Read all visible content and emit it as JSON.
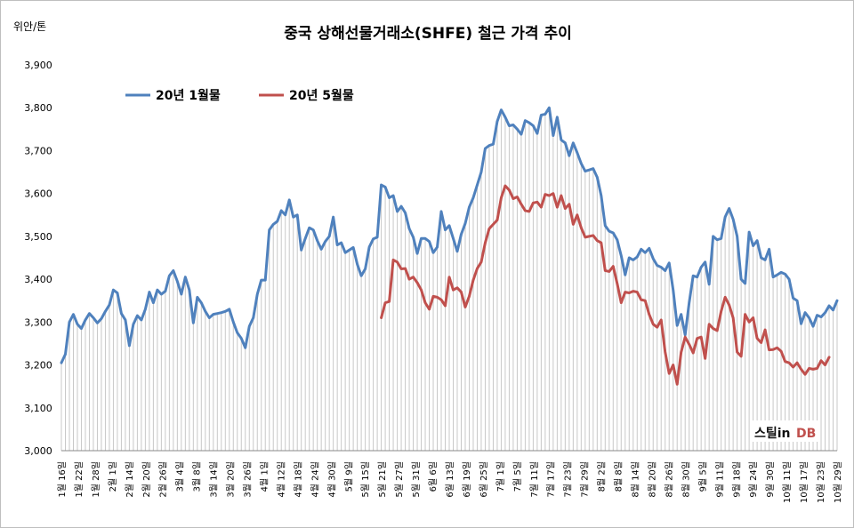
{
  "chart_data": {
    "type": "line",
    "title": "중국 상해선물거래소(SHFE) 철근 가격 추이",
    "ylabel": "위안/톤",
    "ylim": [
      3000,
      3900
    ],
    "yticks": [
      "3,000",
      "3,100",
      "3,200",
      "3,300",
      "3,400",
      "3,500",
      "3,600",
      "3,700",
      "3,800",
      "3,900"
    ],
    "ytick_values": [
      3000,
      3100,
      3200,
      3300,
      3400,
      3500,
      3600,
      3700,
      3800,
      3900
    ],
    "legend_position": "top-left",
    "grid": false,
    "watermark": "스틸in DB",
    "xtick_labels": [
      "1월 16일",
      "1월 22일",
      "1월 28일",
      "2월 1일",
      "2월 14일",
      "2월 20일",
      "2월 26일",
      "3월 4일",
      "3월 8일",
      "3월 14일",
      "3월 20일",
      "3월 26일",
      "4월 1일",
      "4월 12일",
      "4월 18일",
      "4월 24일",
      "4월 30일",
      "5월 9일",
      "5월 15일",
      "5월 21일",
      "5월 27일",
      "5월 31일",
      "6월 6일",
      "6월 13일",
      "6월 19일",
      "6월 25일",
      "7월 1일",
      "7월 5일",
      "7월 11일",
      "7월 17일",
      "7월 23일",
      "7월 29일",
      "8월 2일",
      "8월 8일",
      "8월 14일",
      "8월 20일",
      "8월 26일",
      "8월 30일",
      "9월 5일",
      "9월 11일",
      "9월 18일",
      "9월 24일",
      "9월 30일",
      "10월 11일",
      "10월 17일",
      "10월 23일",
      "10월 29일"
    ],
    "series": [
      {
        "name": "20년 1월물",
        "color": "#4f81bd",
        "start_index": 0,
        "values": [
          3205,
          3225,
          3300,
          3318,
          3295,
          3285,
          3305,
          3320,
          3310,
          3298,
          3308,
          3325,
          3340,
          3375,
          3368,
          3320,
          3305,
          3245,
          3295,
          3315,
          3305,
          3330,
          3370,
          3345,
          3375,
          3365,
          3372,
          3408,
          3420,
          3395,
          3365,
          3405,
          3375,
          3298,
          3358,
          3345,
          3325,
          3310,
          3318,
          3320,
          3322,
          3325,
          3330,
          3300,
          3275,
          3262,
          3240,
          3290,
          3310,
          3365,
          3398,
          3398,
          3515,
          3528,
          3535,
          3560,
          3550,
          3585,
          3545,
          3550,
          3468,
          3495,
          3520,
          3515,
          3490,
          3470,
          3488,
          3500,
          3545,
          3480,
          3485,
          3462,
          3468,
          3474,
          3435,
          3408,
          3424,
          3475,
          3494,
          3498,
          3620,
          3615,
          3590,
          3595,
          3558,
          3570,
          3555,
          3518,
          3498,
          3460,
          3495,
          3495,
          3488,
          3462,
          3475,
          3558,
          3515,
          3525,
          3495,
          3465,
          3505,
          3530,
          3568,
          3590,
          3620,
          3650,
          3705,
          3712,
          3715,
          3768,
          3795,
          3778,
          3758,
          3760,
          3750,
          3738,
          3770,
          3765,
          3758,
          3740,
          3783,
          3785,
          3800,
          3735,
          3778,
          3725,
          3718,
          3688,
          3718,
          3695,
          3670,
          3652,
          3655,
          3658,
          3638,
          3595,
          3525,
          3512,
          3508,
          3492,
          3455,
          3410,
          3450,
          3445,
          3452,
          3470,
          3462,
          3472,
          3448,
          3432,
          3428,
          3420,
          3438,
          3375,
          3292,
          3318,
          3270,
          3345,
          3408,
          3405,
          3428,
          3440,
          3388,
          3500,
          3492,
          3495,
          3545,
          3565,
          3540,
          3500,
          3400,
          3390,
          3510,
          3478,
          3490,
          3450,
          3445,
          3470,
          3405,
          3410,
          3416,
          3412,
          3400,
          3356,
          3350,
          3296,
          3322,
          3310,
          3290,
          3316,
          3312,
          3322,
          3338,
          3328,
          3350
        ]
      },
      {
        "name": "20년 5월물",
        "color": "#c0504d",
        "start_index": 80,
        "values": [
          3310,
          3345,
          3348,
          3445,
          3440,
          3424,
          3425,
          3400,
          3405,
          3392,
          3375,
          3345,
          3330,
          3360,
          3358,
          3352,
          3338,
          3405,
          3375,
          3380,
          3370,
          3335,
          3360,
          3398,
          3425,
          3440,
          3485,
          3518,
          3528,
          3538,
          3590,
          3618,
          3608,
          3588,
          3592,
          3575,
          3560,
          3558,
          3578,
          3580,
          3568,
          3598,
          3595,
          3600,
          3568,
          3595,
          3565,
          3575,
          3528,
          3550,
          3520,
          3498,
          3500,
          3502,
          3490,
          3485,
          3420,
          3418,
          3430,
          3390,
          3345,
          3370,
          3368,
          3372,
          3370,
          3352,
          3350,
          3318,
          3295,
          3288,
          3305,
          3230,
          3180,
          3200,
          3155,
          3230,
          3265,
          3248,
          3228,
          3262,
          3265,
          3215,
          3295,
          3285,
          3280,
          3325,
          3358,
          3340,
          3310,
          3230,
          3220,
          3318,
          3300,
          3310,
          3262,
          3252,
          3282,
          3235,
          3236,
          3240,
          3232,
          3208,
          3205,
          3195,
          3205,
          3190,
          3178,
          3192,
          3190,
          3192,
          3210,
          3200,
          3218
        ]
      }
    ]
  }
}
